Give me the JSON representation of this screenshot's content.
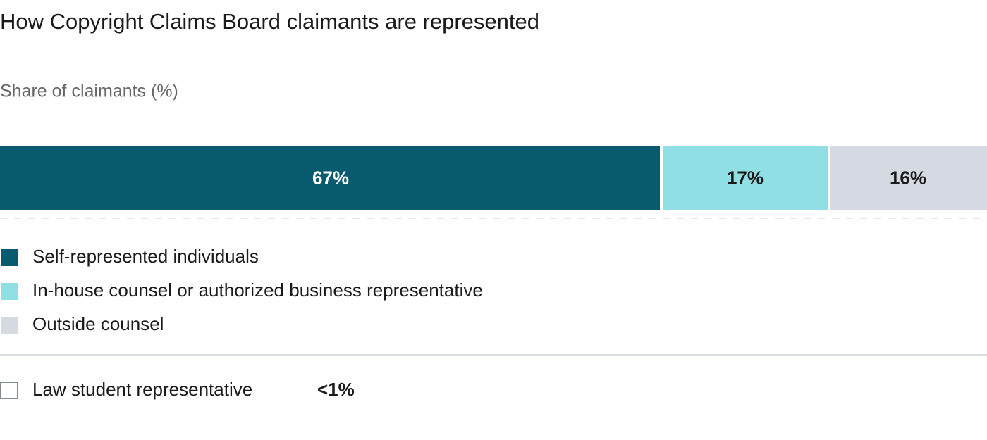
{
  "chart_data": {
    "type": "bar",
    "stacked": true,
    "orientation": "horizontal",
    "title": "How Copyright Claims Board claimants are represented",
    "subtitle": "Share of claimants (%)",
    "xlim": [
      0,
      100
    ],
    "series": [
      {
        "name": "Self-represented individuals",
        "color": "#085a6e",
        "values": [
          67
        ],
        "value_labels": [
          "67%"
        ]
      },
      {
        "name": "In-house counsel or authorized business representative",
        "color": "#8fdfe4",
        "values": [
          17
        ],
        "value_labels": [
          "17%"
        ]
      },
      {
        "name": "Outside counsel",
        "color": "#d5d9e1",
        "values": [
          16
        ],
        "value_labels": [
          "16%"
        ]
      }
    ],
    "other": {
      "name": "Law student representative",
      "label": "<1%"
    }
  }
}
